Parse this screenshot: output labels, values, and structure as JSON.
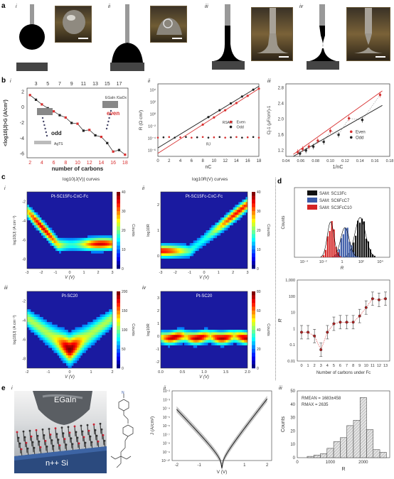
{
  "panels": {
    "a": "a",
    "b": "b",
    "c": "c",
    "d": "d",
    "e": "e"
  },
  "subpanels": {
    "i": "i",
    "ii": "ii",
    "iii": "iii",
    "iv": "iv"
  },
  "b_i": {
    "ylabel": "<log10|J|>G (A/cm²)",
    "xlabel": "number of carbons",
    "top_ticks": [
      "3",
      "5",
      "7",
      "9",
      "11",
      "13",
      "15",
      "17"
    ],
    "bottom_ticks": [
      "2",
      "4",
      "6",
      "8",
      "10",
      "12",
      "14",
      "16",
      "18"
    ],
    "yticks": [
      "2",
      "0",
      "-2",
      "-4",
      "-6"
    ],
    "odd_label": "odd",
    "even_label": "even",
    "egain_label": "EGaIn /GaOx",
    "ag_label": "AgTS",
    "chart_data": {
      "type": "line",
      "x": [
        2,
        3,
        4,
        5,
        6,
        7,
        8,
        9,
        10,
        11,
        12,
        13,
        14,
        15,
        16,
        17,
        18
      ],
      "series": [
        {
          "values": [
            1.6,
            1.0,
            0.4,
            -0.1,
            -0.5,
            -1.0,
            -1.3,
            -2.0,
            -2.1,
            -3.0,
            -2.9,
            -3.6,
            -3.8,
            -4.6,
            -5.7,
            -5.5,
            -6.1
          ]
        }
      ],
      "ylim": [
        -6.5,
        2.5
      ]
    }
  },
  "b_ii": {
    "ylabel": "R (Ω cm²)",
    "xlabel": "nC",
    "yticks": [
      "10⁴",
      "10²",
      "10⁰",
      "10⁻²",
      "10⁻⁴",
      "10⁻⁶"
    ],
    "xticks": [
      "0",
      "2",
      "4",
      "6",
      "8",
      "10",
      "12",
      "14",
      "16",
      "18"
    ],
    "rsam_label": "RSAM",
    "rj_label": "RJ",
    "legend": [
      {
        "name": "Even",
        "color": "#d83030"
      },
      {
        "name": "Odd",
        "color": "#202020"
      }
    ]
  },
  "b_iii": {
    "ylabel": "Cj-1 (μF/cm²)-1",
    "xlabel": "1/nC",
    "yticks": [
      "2.8",
      "2.4",
      "2.0",
      "1.6",
      "1.2"
    ],
    "xticks": [
      "0.04",
      "0.06",
      "0.08",
      "0.10",
      "0.12",
      "0.14",
      "0.16",
      "0.18"
    ],
    "legend": [
      {
        "name": "Even",
        "color": "#d83030"
      },
      {
        "name": "Odd",
        "color": "#202020"
      }
    ]
  },
  "c_i": {
    "title": "log10|J(V)| curves",
    "inner": "Pt-SC15Fc-C≡C-Fc",
    "ylabel": "log10|J| (A cm⁻²)",
    "xlabel": "V (V)",
    "xticks": [
      "-3",
      "-2",
      "-1",
      "0",
      "1",
      "2",
      "3"
    ],
    "yticks": [
      "-2",
      "-4",
      "-6",
      "-8"
    ],
    "cbar": [
      "40",
      "30",
      "20",
      "10",
      "0"
    ],
    "cbar_label": "Counts"
  },
  "c_ii": {
    "title": "log10R(V) curves",
    "inner": "Pt-SC15Fc-C≡C-Fc",
    "ylabel": "log10R",
    "xlabel": "V (V)",
    "xticks": [
      "-3",
      "-2",
      "-1",
      "0",
      "1",
      "2",
      "3"
    ],
    "yticks": [
      "2",
      "1",
      "0"
    ],
    "cbar": [
      "40",
      "30",
      "20",
      "10",
      "0"
    ],
    "cbar_label": "Counts"
  },
  "c_iii": {
    "inner": "Pt-SC20",
    "ylabel": "log10|J| (A cm⁻²)",
    "xlabel": "V (V)",
    "xticks": [
      "-2",
      "-1",
      "0",
      "1",
      "2"
    ],
    "yticks": [
      "-2",
      "-4",
      "-6",
      "-8"
    ],
    "cbar": [
      "200",
      "150",
      "100",
      "50",
      "0"
    ],
    "cbar_label": "Counts"
  },
  "c_iv": {
    "inner": "Pt-SC20",
    "ylabel": "log10R",
    "xlabel": "V (V)",
    "xticks": [
      "0.0",
      "0.5",
      "1.0",
      "1.5",
      "2.0"
    ],
    "yticks": [
      "3",
      "2",
      "1",
      "0",
      "-1",
      "-2"
    ],
    "cbar": [
      "80",
      "60",
      "40",
      "20",
      "0"
    ],
    "cbar_label": "Counts"
  },
  "d_top": {
    "ylabel": "Counts",
    "xlabel": "R",
    "xticks": [
      "10⁻⁴",
      "10⁻²",
      "1",
      "10²",
      "10⁴"
    ],
    "legend": [
      {
        "name": "SAM: SC13Fc",
        "color": "#111111"
      },
      {
        "name": "SAM: SC6FcC7",
        "color": "#3a5aa8"
      },
      {
        "name": "SAM: SC3FcC10",
        "color": "#d42424"
      }
    ]
  },
  "d_bottom": {
    "ylabel": "R",
    "xlabel": "Number of carbons under Fc",
    "yticks": [
      "1,000",
      "100",
      "10",
      "1",
      "0.1",
      "0.01"
    ],
    "xticks": [
      "0",
      "1",
      "2",
      "3",
      "4",
      "5",
      "6",
      "7",
      "8",
      "9",
      "10",
      "11",
      "12",
      "13"
    ],
    "chart_data": {
      "type": "scatter",
      "x": [
        0,
        1,
        2,
        3,
        4,
        5,
        6,
        7,
        8,
        9,
        10,
        11,
        12,
        13
      ],
      "values": [
        0.6,
        0.6,
        0.35,
        0.05,
        0.6,
        2,
        2.5,
        2.5,
        2.5,
        6,
        20,
        70,
        60,
        70
      ],
      "ylim": [
        0.01,
        1000
      ]
    }
  },
  "e_i": {
    "egain": "EGaIn",
    "substrate": "n++ Si"
  },
  "e_ii": {
    "ylabel": "J (A/cm²)",
    "xlabel": "V (V)",
    "yticks": [
      "10⁻²",
      "10⁻³",
      "10⁻⁴",
      "10⁻⁵",
      "10⁻⁶",
      "10⁻⁷",
      "10⁻⁸",
      "10⁻⁹",
      "10⁻¹⁰"
    ],
    "xticks": [
      "-2",
      "-1",
      "0",
      "1",
      "2"
    ]
  },
  "e_iii": {
    "ylabel": "Counts",
    "xlabel": "R",
    "yticks": [
      "50",
      "40",
      "30",
      "20",
      "10",
      "0"
    ],
    "xticks": [
      "0",
      "1000",
      "2000"
    ],
    "rmean": "RMEAN = 1683±458",
    "rmax": "RMAX = 2635",
    "chart_data": {
      "type": "bar",
      "categories": [
        "200",
        "400",
        "600",
        "800",
        "1000",
        "1200",
        "1400",
        "1600",
        "1800",
        "2000",
        "2200",
        "2400",
        "2600"
      ],
      "values": [
        0,
        1,
        2,
        3,
        7,
        12,
        15,
        24,
        28,
        45,
        21,
        6,
        4
      ],
      "ylim": [
        0,
        50
      ]
    }
  },
  "colors": {
    "even": "#d83030",
    "odd": "#202020",
    "accent": "#3a5aa8"
  }
}
